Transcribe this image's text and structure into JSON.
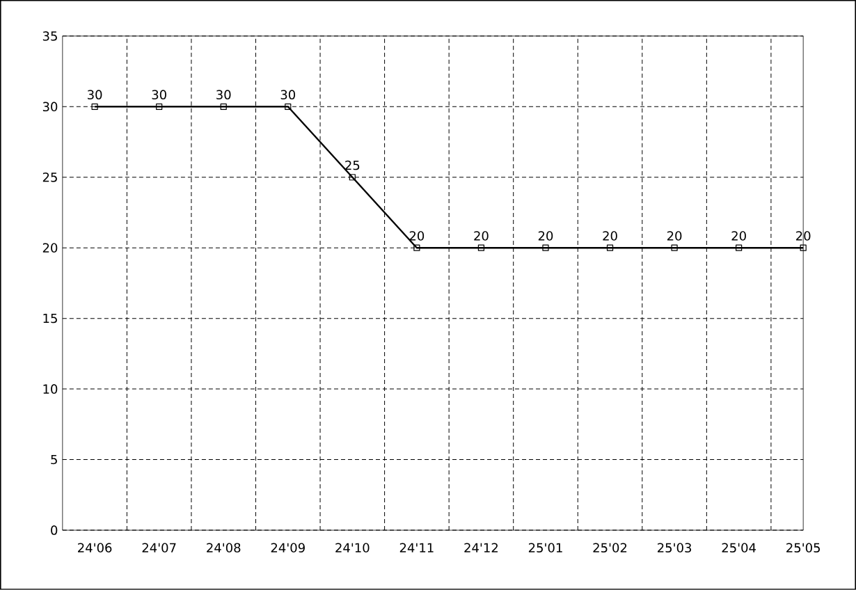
{
  "chart_data": {
    "type": "line",
    "categories": [
      "24'06",
      "24'07",
      "24'08",
      "24'09",
      "24'10",
      "24'11",
      "24'12",
      "25'01",
      "25'02",
      "25'03",
      "25'04",
      "25'05"
    ],
    "series": [
      {
        "color": "#000000",
        "values": [
          30,
          30,
          30,
          30,
          25,
          20,
          20,
          20,
          20,
          20,
          20,
          20
        ]
      }
    ],
    "ylim": [
      0,
      35
    ],
    "yticks": [
      0,
      5,
      10,
      15,
      20,
      25,
      30,
      35
    ],
    "grid": true,
    "marker": "square",
    "line_style": "solid",
    "data_labels": true
  }
}
